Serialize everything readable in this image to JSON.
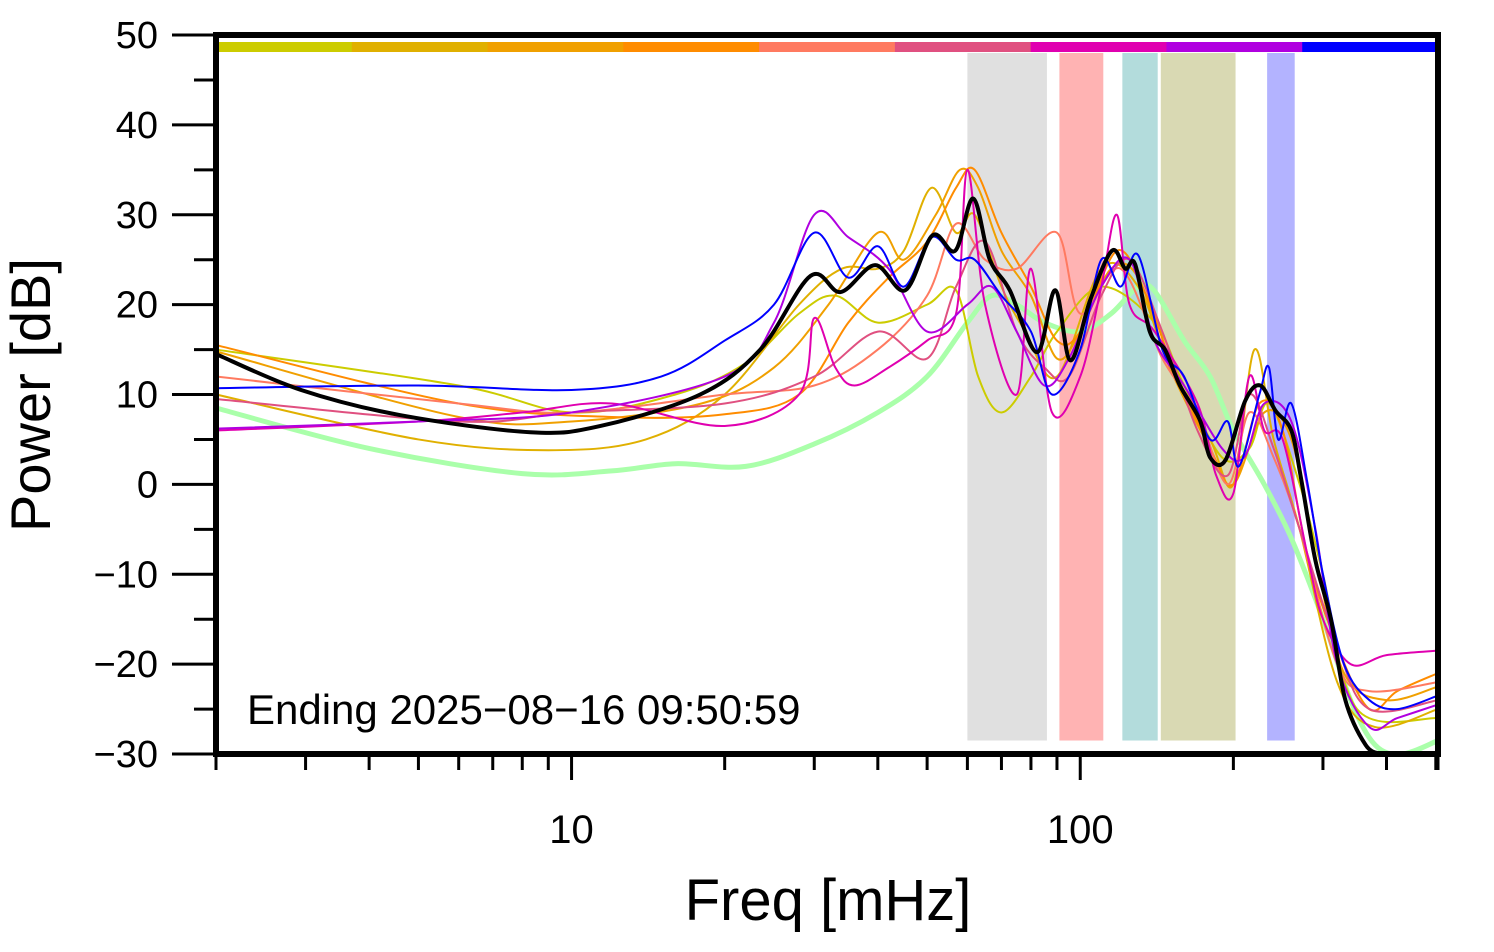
{
  "chart_data": {
    "type": "line",
    "xlabel": "Freq [mHz]",
    "ylabel": "Power [dB]",
    "xscale": "log",
    "xlim": [
      2,
      505
    ],
    "ylim": [
      -30,
      50
    ],
    "x_tick_labels": [
      "10",
      "100"
    ],
    "y_tick_labels": [
      "50",
      "40",
      "30",
      "20",
      "10",
      "0",
      "−10",
      "−20",
      "−30"
    ],
    "grid": false,
    "annotation": "Ending 2025−08−16 09:50:59",
    "top_color_bar": [
      "#cccc00",
      "#e0b000",
      "#f0a000",
      "#ff8c00",
      "#ff7a60",
      "#e05080",
      "#e000b0",
      "#b000e0",
      "#0000ff"
    ],
    "bands": [
      {
        "range": [
          60,
          86
        ],
        "color": "#e0e0e0"
      },
      {
        "range": [
          91,
          111
        ],
        "color": "#ffb3b3"
      },
      {
        "range": [
          121,
          142
        ],
        "color": "#b3dcdc"
      },
      {
        "range": [
          144,
          202
        ],
        "color": "#d9d9b3"
      },
      {
        "range": [
          233,
          264
        ],
        "color": "#b3b3ff"
      }
    ],
    "series": [
      {
        "color": "#aaffaa",
        "width": 5,
        "points": [
          [
            2,
            8.5
          ],
          [
            4,
            4
          ],
          [
            8,
            1.2
          ],
          [
            12,
            1.5
          ],
          [
            16,
            2.3
          ],
          [
            22,
            2
          ],
          [
            30,
            4.5
          ],
          [
            40,
            8
          ],
          [
            50,
            12
          ],
          [
            60,
            18
          ],
          [
            67,
            21
          ],
          [
            75,
            20
          ],
          [
            85,
            18
          ],
          [
            100,
            17
          ],
          [
            115,
            19
          ],
          [
            130,
            22
          ],
          [
            140,
            21.5
          ],
          [
            160,
            16
          ],
          [
            180,
            12
          ],
          [
            200,
            6
          ],
          [
            230,
            0
          ],
          [
            260,
            -6
          ],
          [
            300,
            -15
          ],
          [
            340,
            -24
          ],
          [
            380,
            -29
          ],
          [
            430,
            -30
          ],
          [
            505,
            -28.5
          ]
        ]
      },
      {
        "color": "#cccc00",
        "width": 2,
        "points": [
          [
            2,
            15
          ],
          [
            6,
            11
          ],
          [
            10,
            8
          ],
          [
            16,
            10
          ],
          [
            22,
            13.5
          ],
          [
            28,
            19
          ],
          [
            33,
            21
          ],
          [
            40,
            18
          ],
          [
            50,
            20
          ],
          [
            57,
            21.6
          ],
          [
            63,
            12
          ],
          [
            70,
            8
          ],
          [
            80,
            12
          ],
          [
            90,
            17
          ],
          [
            110,
            22
          ],
          [
            140,
            18
          ],
          [
            160,
            11
          ],
          [
            190,
            3
          ],
          [
            215,
            4
          ],
          [
            235,
            9
          ],
          [
            270,
            0
          ],
          [
            300,
            -10
          ],
          [
            350,
            -25
          ],
          [
            505,
            -26
          ]
        ]
      },
      {
        "color": "#e0b000",
        "width": 2,
        "points": [
          [
            2,
            10
          ],
          [
            5,
            5
          ],
          [
            9,
            3.8
          ],
          [
            14,
            5
          ],
          [
            20,
            10
          ],
          [
            28,
            20
          ],
          [
            34,
            24
          ],
          [
            40,
            24
          ],
          [
            45,
            26
          ],
          [
            51,
            33
          ],
          [
            57,
            28
          ],
          [
            62,
            30
          ],
          [
            70,
            22
          ],
          [
            78,
            17
          ],
          [
            90,
            12
          ],
          [
            110,
            24
          ],
          [
            130,
            22
          ],
          [
            150,
            13
          ],
          [
            180,
            5
          ],
          [
            200,
            0
          ],
          [
            220,
            15
          ],
          [
            240,
            5
          ],
          [
            270,
            -5
          ],
          [
            320,
            -22
          ],
          [
            380,
            -27
          ],
          [
            505,
            -25
          ]
        ]
      },
      {
        "color": "#f0a000",
        "width": 2,
        "points": [
          [
            2,
            14.8
          ],
          [
            6,
            7.5
          ],
          [
            10,
            7
          ],
          [
            18,
            9
          ],
          [
            25,
            13
          ],
          [
            32,
            20
          ],
          [
            40,
            28
          ],
          [
            45,
            25
          ],
          [
            52,
            30
          ],
          [
            58,
            35
          ],
          [
            63,
            33
          ],
          [
            70,
            26
          ],
          [
            80,
            21
          ],
          [
            90,
            14
          ],
          [
            100,
            17
          ],
          [
            115,
            24
          ],
          [
            130,
            23
          ],
          [
            150,
            13
          ],
          [
            180,
            4
          ],
          [
            200,
            0
          ],
          [
            230,
            8
          ],
          [
            260,
            5
          ],
          [
            290,
            -8
          ],
          [
            330,
            -21
          ],
          [
            400,
            -24
          ],
          [
            505,
            -22.5
          ]
        ]
      },
      {
        "color": "#ff8c00",
        "width": 2,
        "points": [
          [
            2,
            15.5
          ],
          [
            6,
            9
          ],
          [
            12,
            7.5
          ],
          [
            20,
            7.8
          ],
          [
            28,
            10
          ],
          [
            35,
            18
          ],
          [
            42,
            23
          ],
          [
            50,
            27
          ],
          [
            57,
            33
          ],
          [
            62,
            35
          ],
          [
            70,
            28
          ],
          [
            80,
            22
          ],
          [
            90,
            16
          ],
          [
            100,
            17
          ],
          [
            118,
            26
          ],
          [
            135,
            21
          ],
          [
            150,
            14
          ],
          [
            180,
            4
          ],
          [
            200,
            0
          ],
          [
            225,
            9
          ],
          [
            250,
            6
          ],
          [
            280,
            -8
          ],
          [
            320,
            -18
          ],
          [
            370,
            -25
          ],
          [
            420,
            -23
          ],
          [
            505,
            -21
          ]
        ]
      },
      {
        "color": "#ff7a60",
        "width": 2,
        "points": [
          [
            2,
            12
          ],
          [
            6,
            9
          ],
          [
            10,
            8
          ],
          [
            20,
            10
          ],
          [
            30,
            11
          ],
          [
            40,
            15
          ],
          [
            50,
            21
          ],
          [
            57,
            29
          ],
          [
            65,
            25
          ],
          [
            75,
            24
          ],
          [
            90,
            28
          ],
          [
            100,
            19
          ],
          [
            120,
            24
          ],
          [
            145,
            14
          ],
          [
            170,
            8
          ],
          [
            195,
            0
          ],
          [
            215,
            8
          ],
          [
            240,
            3
          ],
          [
            270,
            -5
          ],
          [
            320,
            -20
          ],
          [
            370,
            -23
          ],
          [
            505,
            -22
          ]
        ]
      },
      {
        "color": "#e05080",
        "width": 2,
        "points": [
          [
            2,
            9.5
          ],
          [
            6,
            7
          ],
          [
            10,
            8
          ],
          [
            20,
            9
          ],
          [
            30,
            12
          ],
          [
            40,
            17
          ],
          [
            50,
            14
          ],
          [
            57,
            22
          ],
          [
            65,
            27
          ],
          [
            75,
            17
          ],
          [
            85,
            13
          ],
          [
            95,
            12
          ],
          [
            110,
            21
          ],
          [
            125,
            25
          ],
          [
            145,
            17
          ],
          [
            170,
            6
          ],
          [
            195,
            1
          ],
          [
            215,
            10
          ],
          [
            240,
            4
          ],
          [
            270,
            -5
          ],
          [
            320,
            -18
          ],
          [
            370,
            -25
          ],
          [
            505,
            -24
          ]
        ]
      },
      {
        "color": "#e000b0",
        "width": 2,
        "points": [
          [
            2,
            6
          ],
          [
            5,
            7
          ],
          [
            8,
            8
          ],
          [
            12,
            9
          ],
          [
            20,
            6.5
          ],
          [
            28,
            10
          ],
          [
            30,
            18.5
          ],
          [
            33,
            13
          ],
          [
            36,
            11
          ],
          [
            42,
            13
          ],
          [
            50,
            16
          ],
          [
            57,
            19
          ],
          [
            60,
            35
          ],
          [
            65,
            20
          ],
          [
            75,
            10
          ],
          [
            80,
            24
          ],
          [
            88,
            8
          ],
          [
            100,
            12
          ],
          [
            110,
            22
          ],
          [
            118,
            30
          ],
          [
            125,
            20
          ],
          [
            140,
            17
          ],
          [
            170,
            9
          ],
          [
            185,
            1
          ],
          [
            200,
            -1
          ],
          [
            215,
            12
          ],
          [
            230,
            6
          ],
          [
            250,
            5
          ],
          [
            280,
            -8
          ],
          [
            300,
            -15
          ],
          [
            340,
            -20
          ],
          [
            400,
            -19
          ],
          [
            505,
            -18.5
          ]
        ]
      },
      {
        "color": "#b000e0",
        "width": 2,
        "points": [
          [
            2,
            6.2
          ],
          [
            5,
            7
          ],
          [
            10,
            8
          ],
          [
            20,
            12
          ],
          [
            25,
            18
          ],
          [
            30,
            30
          ],
          [
            35,
            27.5
          ],
          [
            42,
            24
          ],
          [
            50,
            17
          ],
          [
            60,
            20
          ],
          [
            67,
            22
          ],
          [
            75,
            17
          ],
          [
            85,
            11
          ],
          [
            95,
            14
          ],
          [
            110,
            22
          ],
          [
            125,
            25
          ],
          [
            140,
            16
          ],
          [
            160,
            11
          ],
          [
            190,
            4
          ],
          [
            210,
            3
          ],
          [
            230,
            9
          ],
          [
            260,
            7
          ],
          [
            290,
            -5
          ],
          [
            320,
            -20
          ],
          [
            370,
            -27
          ],
          [
            420,
            -26
          ],
          [
            505,
            -24.5
          ]
        ]
      },
      {
        "color": "#0000ff",
        "width": 2,
        "points": [
          [
            2,
            10.7
          ],
          [
            5,
            11
          ],
          [
            10,
            10.5
          ],
          [
            15,
            12
          ],
          [
            20,
            16
          ],
          [
            25,
            20
          ],
          [
            30,
            28
          ],
          [
            35,
            23
          ],
          [
            40,
            26.5
          ],
          [
            45,
            22
          ],
          [
            51,
            27.5
          ],
          [
            57,
            25
          ],
          [
            62,
            25
          ],
          [
            70,
            21
          ],
          [
            80,
            17
          ],
          [
            88,
            10
          ],
          [
            100,
            15
          ],
          [
            110,
            25
          ],
          [
            120,
            22
          ],
          [
            130,
            25.5
          ],
          [
            145,
            15
          ],
          [
            160,
            12
          ],
          [
            180,
            5
          ],
          [
            195,
            7
          ],
          [
            205,
            2
          ],
          [
            225,
            10
          ],
          [
            235,
            13
          ],
          [
            245,
            5
          ],
          [
            260,
            9
          ],
          [
            280,
            0
          ],
          [
            300,
            -10
          ],
          [
            330,
            -20
          ],
          [
            370,
            -24
          ],
          [
            420,
            -25
          ],
          [
            505,
            -23.5
          ]
        ]
      },
      {
        "color": "#000000",
        "width": 4,
        "points": [
          [
            2,
            14.5
          ],
          [
            2.94,
            10.5
          ],
          [
            4.61,
            7.7
          ],
          [
            8.3,
            5.8
          ],
          [
            11.4,
            6.5
          ],
          [
            17.9,
            10
          ],
          [
            23.5,
            15
          ],
          [
            29.5,
            23.2
          ],
          [
            33.8,
            21.4
          ],
          [
            39.5,
            24.4
          ],
          [
            45.3,
            21.6
          ],
          [
            51.2,
            27.7
          ],
          [
            56.8,
            26
          ],
          [
            61.6,
            31.8
          ],
          [
            66.4,
            25
          ],
          [
            72.7,
            21.6
          ],
          [
            82.2,
            14.7
          ],
          [
            89.3,
            21.6
          ],
          [
            95.6,
            13.8
          ],
          [
            104.6,
            20.5
          ],
          [
            115.4,
            26
          ],
          [
            122.6,
            24
          ],
          [
            128.2,
            24.5
          ],
          [
            137,
            17
          ],
          [
            146.7,
            15
          ],
          [
            157,
            11
          ],
          [
            172,
            7.1
          ],
          [
            180,
            3
          ],
          [
            193,
            2.7
          ],
          [
            211,
            9.3
          ],
          [
            226,
            11
          ],
          [
            242,
            8.2
          ],
          [
            260,
            6
          ],
          [
            272,
            0.5
          ],
          [
            290,
            -8.5
          ],
          [
            311,
            -15
          ],
          [
            332,
            -24
          ],
          [
            364,
            -29
          ],
          [
            390,
            -30
          ]
        ]
      }
    ]
  }
}
